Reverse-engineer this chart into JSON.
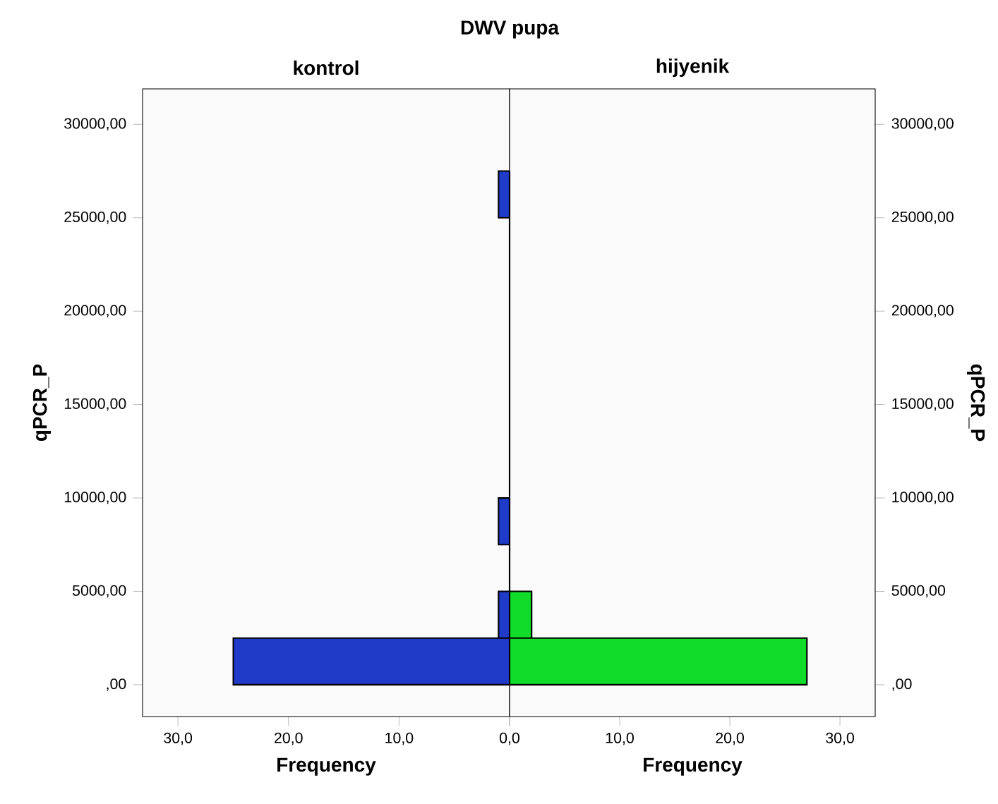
{
  "chart_data": [
    {
      "type": "histogram",
      "orientation": "horizontal",
      "title": "DWV pupa",
      "subtitle": "kontrol",
      "xlabel": "Frequency",
      "ylabel": "qPCR_P",
      "bins": [
        0,
        2500,
        5000,
        7500,
        10000,
        12500,
        15000,
        17500,
        20000,
        22500,
        25000,
        27500
      ],
      "values": [
        25,
        1,
        0,
        1,
        0,
        0,
        0,
        0,
        0,
        0,
        1
      ],
      "color": "#1f3bc8",
      "xlim": [
        33.2,
        0
      ],
      "xticks": [
        {
          "value": 30,
          "label": "30,0"
        },
        {
          "value": 20,
          "label": "20,0"
        },
        {
          "value": 10,
          "label": "10,0"
        },
        {
          "value": 0,
          "label": "0,0"
        }
      ],
      "ylim": [
        -1700,
        31900
      ],
      "yticks": [
        {
          "value": 0,
          "label": ",00"
        },
        {
          "value": 5000,
          "label": "5000,00"
        },
        {
          "value": 10000,
          "label": "10000,00"
        },
        {
          "value": 15000,
          "label": "15000,00"
        },
        {
          "value": 20000,
          "label": "20000,00"
        },
        {
          "value": 25000,
          "label": "25000,00"
        },
        {
          "value": 30000,
          "label": "30000,00"
        }
      ]
    },
    {
      "type": "histogram",
      "orientation": "horizontal",
      "title": "hijyenik",
      "xlabel": "Frequency",
      "ylabel": "qPCR_P",
      "bins": [
        0,
        2500,
        5000,
        7500,
        10000,
        12500,
        15000,
        17500,
        20000,
        22500,
        25000,
        27500
      ],
      "values": [
        27,
        2,
        0,
        0,
        0,
        0,
        0,
        0,
        0,
        0,
        0
      ],
      "color": "#12dc2a",
      "xlim": [
        0,
        33.2
      ],
      "xticks": [
        {
          "value": 0,
          "label": null
        },
        {
          "value": 10,
          "label": "10,0"
        },
        {
          "value": 20,
          "label": "20,0"
        },
        {
          "value": 30,
          "label": "30,0"
        }
      ],
      "ylim": [
        -1700,
        31900
      ],
      "yticks": [
        {
          "value": 0,
          "label": ",00"
        },
        {
          "value": 5000,
          "label": "5000,00"
        },
        {
          "value": 10000,
          "label": "10000,00"
        },
        {
          "value": 15000,
          "label": "15000,00"
        },
        {
          "value": 20000,
          "label": "20000,00"
        },
        {
          "value": 25000,
          "label": "25000,00"
        },
        {
          "value": 30000,
          "label": "30000,00"
        }
      ]
    }
  ]
}
